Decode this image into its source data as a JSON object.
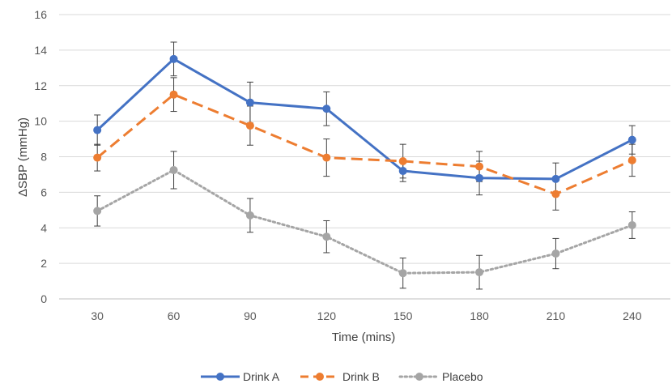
{
  "chart_data": {
    "type": "line",
    "title": "",
    "xlabel": "Time (mins)",
    "ylabel": "ΔSBP (mmHg)",
    "categories": [
      "30",
      "60",
      "90",
      "120",
      "150",
      "180",
      "210",
      "240"
    ],
    "ylim": [
      0,
      16
    ],
    "yticks": [
      0,
      2,
      4,
      6,
      8,
      10,
      12,
      14,
      16
    ],
    "grid": true,
    "legend_position": "bottom",
    "series": [
      {
        "name": "Drink A",
        "color": "#4472c4",
        "dash": "solid",
        "values": [
          9.5,
          13.5,
          11.05,
          10.7,
          7.2,
          6.8,
          6.75,
          8.95
        ],
        "errors": [
          0.85,
          0.95,
          1.15,
          0.95,
          0.6,
          0.95,
          0.9,
          0.8
        ]
      },
      {
        "name": "Drink B",
        "color": "#ed7d31",
        "dash": "dashed",
        "values": [
          7.95,
          11.5,
          9.75,
          7.95,
          7.75,
          7.45,
          5.9,
          7.8
        ],
        "errors": [
          0.75,
          0.95,
          1.1,
          1.05,
          0.95,
          0.85,
          0.9,
          0.9
        ]
      },
      {
        "name": "Placebo",
        "color": "#a5a5a5",
        "dash": "dotted",
        "values": [
          4.95,
          7.25,
          4.7,
          3.5,
          1.45,
          1.5,
          2.55,
          4.15
        ],
        "errors": [
          0.85,
          1.05,
          0.95,
          0.9,
          0.85,
          0.95,
          0.85,
          0.75
        ]
      }
    ]
  }
}
